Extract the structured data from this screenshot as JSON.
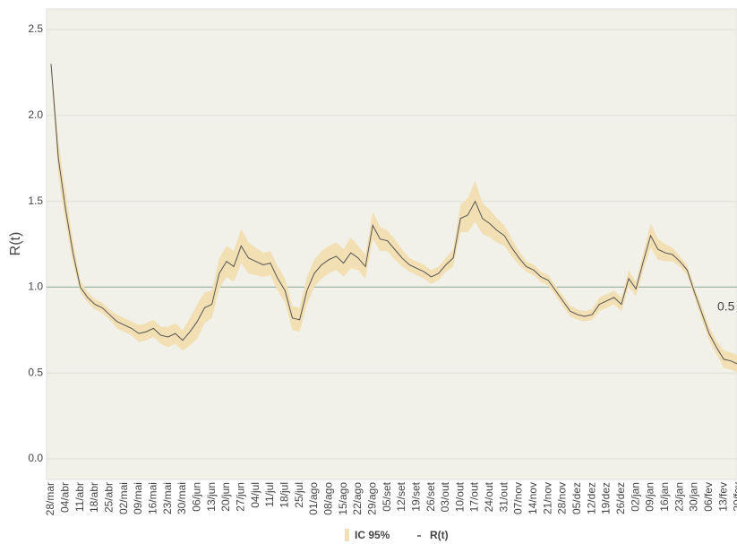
{
  "chart_data": {
    "type": "line-band",
    "y_label": "R(t)",
    "ylim": [
      -0.12,
      2.62
    ],
    "yticks": [
      {
        "value": 0,
        "label": "0.0"
      },
      0.5,
      {
        "value": 1,
        "label": "1.0"
      },
      1.5,
      {
        "value": 2,
        "label": "2.0"
      },
      2.5
    ],
    "grid": true,
    "reference_line": {
      "value": 1,
      "color": "#9fb8a4"
    },
    "annotation": "0.5",
    "categories": [
      "28/mar",
      null,
      "04/abr",
      null,
      "11/abr",
      null,
      "18/abr",
      null,
      "25/abr",
      null,
      "02/mai",
      null,
      "09/mai",
      null,
      "16/mai",
      null,
      "23/mai",
      null,
      "30/mai",
      null,
      "06/jun",
      null,
      "13/jun",
      null,
      "20/jun",
      null,
      "27/jun",
      null,
      "04/jul",
      null,
      "11/jul",
      null,
      "18/jul",
      null,
      "25/jul",
      null,
      "01/ago",
      null,
      "08/ago",
      null,
      "15/ago",
      null,
      "22/ago",
      null,
      "29/ago",
      null,
      "05/set",
      null,
      "12/set",
      null,
      "19/set",
      null,
      "26/set",
      null,
      "03/out",
      null,
      "10/out",
      null,
      "17/out",
      null,
      "24/out",
      null,
      "31/out",
      null,
      "07/nov",
      null,
      "14/nov",
      null,
      "21/nov",
      null,
      "28/nov",
      null,
      "05/dez",
      null,
      "12/dez",
      null,
      "19/dez",
      null,
      "26/dez",
      null,
      "02/jan",
      null,
      "09/jan",
      null,
      "16/jan",
      null,
      "23/jan",
      null,
      "30/jan",
      null,
      "06/fev",
      null,
      "13/fev",
      null,
      "20/fev"
    ],
    "series": [
      {
        "name": "IC 95%",
        "color": "#f2dfb3",
        "upper": [
          2.33,
          1.85,
          1.55,
          1.27,
          1.04,
          0.97,
          0.93,
          0.91,
          0.87,
          0.84,
          0.82,
          0.8,
          0.78,
          0.79,
          0.81,
          0.77,
          0.77,
          0.79,
          0.75,
          0.82,
          0.9,
          0.97,
          0.98,
          1.17,
          1.24,
          1.21,
          1.34,
          1.26,
          1.23,
          1.2,
          1.21,
          1.12,
          1.05,
          0.89,
          0.88,
          1.06,
          1.16,
          1.21,
          1.24,
          1.26,
          1.22,
          1.29,
          1.24,
          1.19,
          1.44,
          1.35,
          1.33,
          1.28,
          1.22,
          1.17,
          1.15,
          1.13,
          1.1,
          1.12,
          1.17,
          1.22,
          1.48,
          1.52,
          1.62,
          1.49,
          1.45,
          1.4,
          1.36,
          1.28,
          1.21,
          1.15,
          1.13,
          1.09,
          1.07,
          1.01,
          0.95,
          0.89,
          0.87,
          0.86,
          0.87,
          0.94,
          0.96,
          0.98,
          0.94,
          1.1,
          1.03,
          1.2,
          1.37,
          1.28,
          1.25,
          1.23,
          1.18,
          1.13,
          1.0,
          0.89,
          0.77,
          0.69,
          0.63,
          0.62,
          0.6
        ],
        "lower": [
          2.27,
          1.65,
          1.37,
          1.14,
          0.97,
          0.91,
          0.87,
          0.85,
          0.81,
          0.76,
          0.74,
          0.72,
          0.68,
          0.69,
          0.71,
          0.67,
          0.65,
          0.67,
          0.63,
          0.66,
          0.7,
          0.79,
          0.82,
          0.99,
          1.06,
          1.03,
          1.14,
          1.08,
          1.07,
          1.06,
          1.07,
          0.98,
          0.91,
          0.75,
          0.74,
          0.9,
          1.0,
          1.05,
          1.08,
          1.1,
          1.06,
          1.11,
          1.1,
          1.05,
          1.28,
          1.21,
          1.21,
          1.16,
          1.12,
          1.09,
          1.07,
          1.05,
          1.02,
          1.04,
          1.09,
          1.12,
          1.32,
          1.32,
          1.38,
          1.31,
          1.29,
          1.26,
          1.24,
          1.18,
          1.13,
          1.09,
          1.07,
          1.03,
          1.01,
          0.95,
          0.89,
          0.83,
          0.81,
          0.8,
          0.81,
          0.86,
          0.88,
          0.9,
          0.86,
          1.0,
          0.95,
          1.1,
          1.23,
          1.16,
          1.15,
          1.15,
          1.12,
          1.07,
          0.94,
          0.81,
          0.69,
          0.61,
          0.53,
          0.52,
          0.5
        ]
      },
      {
        "name": "R(t)",
        "color": "#555555",
        "values": [
          2.3,
          1.75,
          1.45,
          1.2,
          1.0,
          0.94,
          0.9,
          0.88,
          0.84,
          0.8,
          0.78,
          0.76,
          0.73,
          0.74,
          0.76,
          0.72,
          0.71,
          0.73,
          0.69,
          0.74,
          0.8,
          0.88,
          0.9,
          1.08,
          1.15,
          1.12,
          1.24,
          1.17,
          1.15,
          1.13,
          1.14,
          1.05,
          0.98,
          0.82,
          0.81,
          0.98,
          1.08,
          1.13,
          1.16,
          1.18,
          1.14,
          1.2,
          1.17,
          1.12,
          1.36,
          1.28,
          1.27,
          1.22,
          1.17,
          1.13,
          1.11,
          1.09,
          1.06,
          1.08,
          1.13,
          1.17,
          1.4,
          1.42,
          1.5,
          1.4,
          1.37,
          1.33,
          1.3,
          1.23,
          1.17,
          1.12,
          1.1,
          1.06,
          1.04,
          0.98,
          0.92,
          0.86,
          0.84,
          0.83,
          0.84,
          0.9,
          0.92,
          0.94,
          0.9,
          1.05,
          0.99,
          1.15,
          1.3,
          1.22,
          1.2,
          1.19,
          1.15,
          1.1,
          0.97,
          0.85,
          0.73,
          0.65,
          0.58,
          0.57,
          0.55
        ]
      }
    ]
  }
}
